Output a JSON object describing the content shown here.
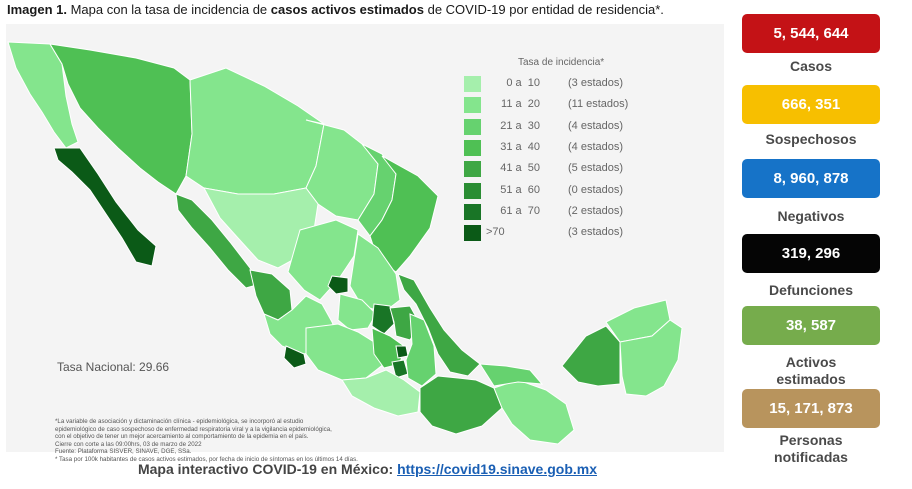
{
  "title": {
    "prefix": "Imagen 1.",
    "part1": " Mapa con la tasa de incidencia de ",
    "bold": "casos activos estimados",
    "part2": " de COVID-19 por entidad de residencia*."
  },
  "legend": {
    "title": "Tasa de incidencia*",
    "rows": [
      {
        "range": "0 a  10",
        "count": "(3 estados)",
        "color": "#a5efac"
      },
      {
        "range": "11 a  20",
        "count": "(11 estados)",
        "color": "#84e58d"
      },
      {
        "range": "21 a  30",
        "count": "(4 estados)",
        "color": "#66d26f"
      },
      {
        "range": "31 a  40",
        "count": "(4 estados)",
        "color": "#4fc054"
      },
      {
        "range": "41 a  50",
        "count": "(5 estados)",
        "color": "#3ea744"
      },
      {
        "range": "51 a  60",
        "count": "(0 estados)",
        "color": "#2a8d33"
      },
      {
        "range": "61 a  70",
        "count": "(2 estados)",
        "color": "#197526"
      },
      {
        "range": ">70",
        "count": "(3 estados)",
        "color": "#0b5a17"
      }
    ]
  },
  "tasa_nacional": "Tasa Nacional: 29.66",
  "notes": [
    "*La variable de asociación y dictaminación clínica - epidemiológica, se incorporó al estudio",
    "epidemiológico de caso sospechoso de enfermedad respiratoria viral y a la vigilancia epidemiológica,",
    "con el objetivo de tener un mejor acercamiento al comportamiento de la epidemia en el país.",
    "Cierre con corte a las 09:00hrs, 03 de marzo de 2022",
    "Fuente: Plataforma SISVER, SINAVE, DGE, SSa.",
    "* Tasa por 100k habitantes de casos activos estimados, por fecha de inicio de síntomas en los últimos 14 días."
  ],
  "footer": {
    "text": "Mapa interactivo COVID-19 en México: ",
    "link": "https://covid19.sinave.gob.mx"
  },
  "stats": [
    {
      "value": "5, 544, 644",
      "label": "Casos",
      "bg": "#c41216",
      "fg": "#ffffff"
    },
    {
      "value": "666, 351",
      "label": "Sospechosos",
      "bg": "#f7bf00",
      "fg": "#ffffff"
    },
    {
      "value": "8, 960, 878",
      "label": "Negativos",
      "bg": "#1673c8",
      "fg": "#ffffff"
    },
    {
      "value": "319, 296",
      "label": "Defunciones",
      "bg": "#050505",
      "fg": "#ffffff"
    },
    {
      "value": "38, 587",
      "label": "Activos\nestimados",
      "bg": "#76ac4c",
      "fg": "#ffffff"
    },
    {
      "value": "15, 171, 873",
      "label": "Personas\nnotificadas",
      "bg": "#b8945d",
      "fg": "#ffffff"
    }
  ],
  "chart_data": {
    "type": "choropleth",
    "title": "Tasa de incidencia*",
    "bins": [
      "0 a 10",
      "11 a 20",
      "21 a 30",
      "31 a 40",
      "41 a 50",
      "51 a 60",
      "61 a 70",
      ">70"
    ],
    "state_counts": [
      3,
      11,
      4,
      4,
      5,
      0,
      2,
      3
    ],
    "national_rate": 29.66
  }
}
